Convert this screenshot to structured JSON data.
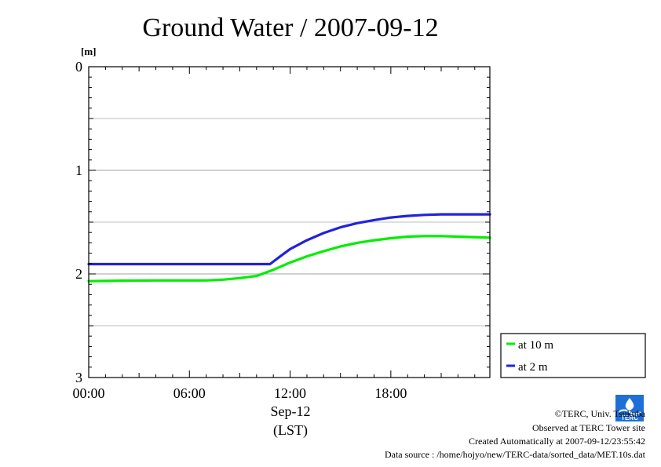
{
  "chart_data": {
    "type": "line",
    "title": "Ground Water / 2007-09-12",
    "ylabel": "[m]",
    "xlabel": "(LST)",
    "x_date_label": "Sep-12",
    "y_inverted": true,
    "ylim": [
      0,
      3
    ],
    "y_ticks": [
      0,
      1,
      2,
      3
    ],
    "y_minor_grid": [
      0.5,
      1.5,
      2.5
    ],
    "xlim_hours": [
      0,
      23.9
    ],
    "x_tick_hours": [
      0,
      6,
      12,
      18
    ],
    "x_tick_labels": [
      "00:00",
      "06:00",
      "12:00",
      "18:00"
    ],
    "grid": true,
    "legend_position": "bottom-right-outside",
    "series": [
      {
        "name": "at 10 m",
        "color": "#00ee00",
        "points": [
          [
            0,
            2.07
          ],
          [
            2,
            2.065
          ],
          [
            4,
            2.063
          ],
          [
            6,
            2.063
          ],
          [
            7,
            2.063
          ],
          [
            8,
            2.055
          ],
          [
            9,
            2.04
          ],
          [
            10,
            2.02
          ],
          [
            11,
            1.96
          ],
          [
            12,
            1.89
          ],
          [
            13,
            1.83
          ],
          [
            14,
            1.78
          ],
          [
            15,
            1.735
          ],
          [
            16,
            1.7
          ],
          [
            17,
            1.675
          ],
          [
            18,
            1.655
          ],
          [
            19,
            1.64
          ],
          [
            20,
            1.635
          ],
          [
            21,
            1.635
          ],
          [
            22,
            1.64
          ],
          [
            23.9,
            1.65
          ]
        ]
      },
      {
        "name": "at 2 m",
        "color": "#2222dd",
        "points": [
          [
            0,
            1.905
          ],
          [
            2,
            1.905
          ],
          [
            4,
            1.905
          ],
          [
            6,
            1.905
          ],
          [
            8,
            1.905
          ],
          [
            10,
            1.905
          ],
          [
            10.8,
            1.905
          ],
          [
            11.5,
            1.82
          ],
          [
            12,
            1.76
          ],
          [
            13,
            1.675
          ],
          [
            14,
            1.605
          ],
          [
            15,
            1.55
          ],
          [
            16,
            1.51
          ],
          [
            17,
            1.48
          ],
          [
            18,
            1.455
          ],
          [
            19,
            1.44
          ],
          [
            20,
            1.43
          ],
          [
            21,
            1.425
          ],
          [
            22,
            1.425
          ],
          [
            23.9,
            1.425
          ]
        ]
      }
    ]
  },
  "footer": {
    "copyright": "©TERC, Univ. Tsukuba",
    "site": "Observed at TERC Tower site",
    "created": "Created Automatically at 2007-09-12/23:55:42",
    "source": "Data source : /home/hojyo/new/TERC-data/sorted_data/MET.10s.dat",
    "logo_text": "TERC"
  }
}
